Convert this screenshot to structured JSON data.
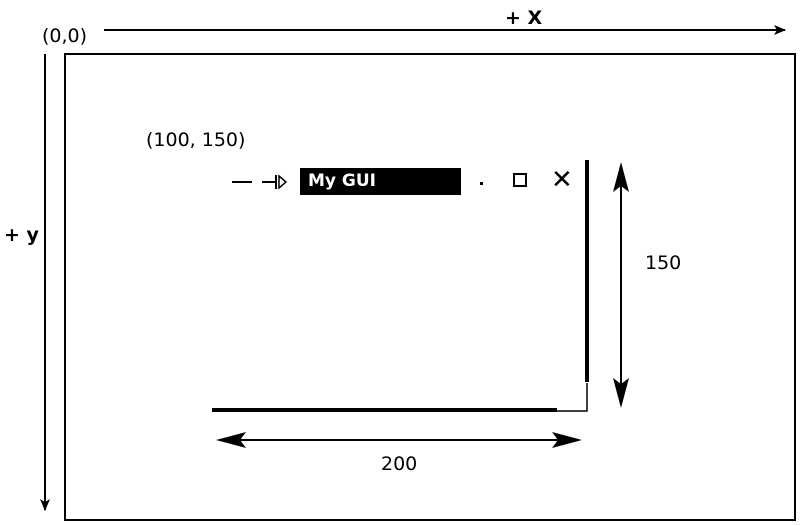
{
  "origin_label": "(0,0)",
  "x_axis_label": "+ X",
  "y_axis_label": "+ y",
  "window_position_label": "(100, 150)",
  "window": {
    "title": "My GUI",
    "minimize_icon": "minimize-dot-icon",
    "maximize_icon": "maximize-square-icon",
    "close_icon": "close-x-icon",
    "close_glyph": "✕"
  },
  "dimensions": {
    "height_label": "150",
    "width_label": "200"
  }
}
